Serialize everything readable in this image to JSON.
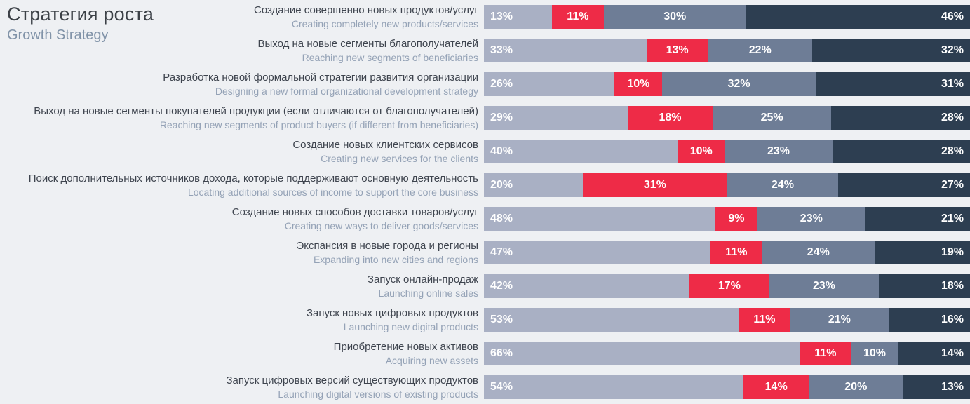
{
  "title": {
    "ru": "Стратегия роста",
    "en": "Growth Strategy"
  },
  "chart_data": {
    "type": "bar",
    "subtype": "horizontal-stacked",
    "value_format": "percent",
    "value_suffix": "%",
    "xlim": [
      0,
      100
    ],
    "grid": false,
    "legend": "none",
    "segment_colors": [
      "#a9b0c4",
      "#ee2b47",
      "#6e7d96",
      "#2d3e51"
    ],
    "background_color": "#eef0f3",
    "rows": [
      {
        "ru": "Создание совершенно новых продуктов/услуг",
        "en": "Creating completely new products/services",
        "values": [
          13,
          11,
          30,
          46
        ]
      },
      {
        "ru": "Выход на новые сегменты благополучателей",
        "en": "Reaching new segments of beneficiaries",
        "values": [
          33,
          13,
          22,
          32
        ]
      },
      {
        "ru": "Разработка новой формальной стратегии развития организации",
        "en": "Designing a new formal organizational development strategy",
        "values": [
          26,
          10,
          32,
          31
        ]
      },
      {
        "ru": "Выход на новые сегменты покупателей продукции (если отличаются от благополучателей)",
        "en": "Reaching new segments of product buyers (if different from beneficiaries)",
        "values": [
          29,
          18,
          25,
          28
        ]
      },
      {
        "ru": "Создание новых клиентских сервисов",
        "en": "Creating new services for the clients",
        "values": [
          40,
          10,
          23,
          28
        ]
      },
      {
        "ru": "Поиск дополнительных источников дохода, которые поддерживают основную деятельность",
        "en": "Locating additional sources of income to support the core business",
        "values": [
          20,
          31,
          24,
          27
        ]
      },
      {
        "ru": "Создание новых способов доставки товаров/услуг",
        "en": "Creating new ways to deliver goods/services",
        "values": [
          48,
          9,
          23,
          21
        ]
      },
      {
        "ru": "Экспансия в новые города и регионы",
        "en": "Expanding into new cities and regions",
        "values": [
          47,
          11,
          24,
          19
        ]
      },
      {
        "ru": "Запуск онлайн-продаж",
        "en": "Launching online sales",
        "values": [
          42,
          17,
          23,
          18
        ]
      },
      {
        "ru": "Запуск новых цифровых продуктов",
        "en": "Launching new digital products",
        "values": [
          53,
          11,
          21,
          16
        ]
      },
      {
        "ru": "Приобретение новых активов",
        "en": "Acquiring new assets",
        "values": [
          66,
          11,
          10,
          14
        ]
      },
      {
        "ru": "Запуск цифровых версий существующих продуктов",
        "en": "Launching digital versions of existing products",
        "values": [
          54,
          14,
          20,
          13
        ]
      }
    ]
  }
}
